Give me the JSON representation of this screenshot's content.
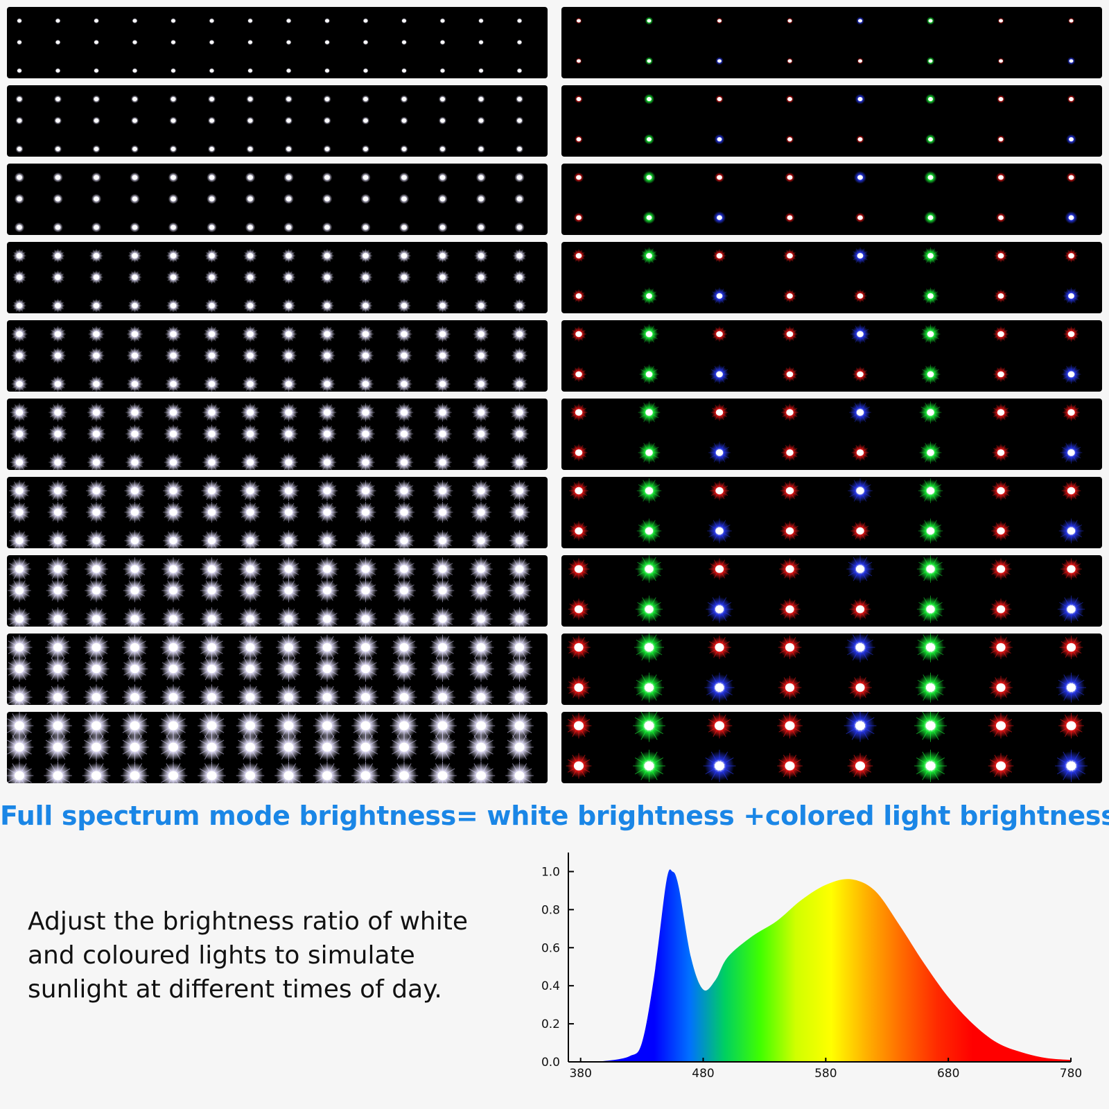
{
  "headline": "Full spectrum mode brightness= white brightness +colored light brightness",
  "caption": {
    "line1": "Adjust the brightness ratio of white",
    "line2": "and coloured lights to simulate",
    "line3": "sunlight at different times of day."
  },
  "led_panels": {
    "levels": 10,
    "white_columns": 14,
    "white_rows": 3,
    "color_rows": 2,
    "color_pattern_row1": [
      "red",
      "green",
      "red",
      "red",
      "blue",
      "green",
      "red",
      "red"
    ],
    "color_pattern_row2": [
      "red",
      "green",
      "blue",
      "red",
      "red",
      "green",
      "red",
      "blue"
    ],
    "colors": {
      "red": "#ff1a1a",
      "green": "#1aff3a",
      "blue": "#2a3cff",
      "white": "#ffffff"
    }
  },
  "chart_data": {
    "type": "area",
    "x": [
      380,
      400,
      420,
      430,
      440,
      450,
      455,
      460,
      470,
      480,
      490,
      500,
      520,
      540,
      560,
      580,
      600,
      620,
      640,
      660,
      680,
      700,
      720,
      740,
      760,
      780
    ],
    "y": [
      0.0,
      0.005,
      0.03,
      0.1,
      0.45,
      0.95,
      1.0,
      0.92,
      0.55,
      0.38,
      0.43,
      0.55,
      0.66,
      0.74,
      0.85,
      0.93,
      0.96,
      0.9,
      0.72,
      0.52,
      0.34,
      0.2,
      0.1,
      0.05,
      0.02,
      0.01
    ],
    "x_ticks": [
      "380",
      "480",
      "580",
      "680",
      "780"
    ],
    "y_ticks": [
      "0.0",
      "0.2",
      "0.4",
      "0.6",
      "0.8",
      "1.0"
    ],
    "xlim": [
      370,
      780
    ],
    "ylim": [
      0,
      1.1
    ],
    "gradient": [
      "#0000ff",
      "#0070ff",
      "#00d060",
      "#40ff00",
      "#d0ff00",
      "#ffff00",
      "#ffb000",
      "#ff6a00",
      "#ff2a00",
      "#ff0000"
    ]
  }
}
